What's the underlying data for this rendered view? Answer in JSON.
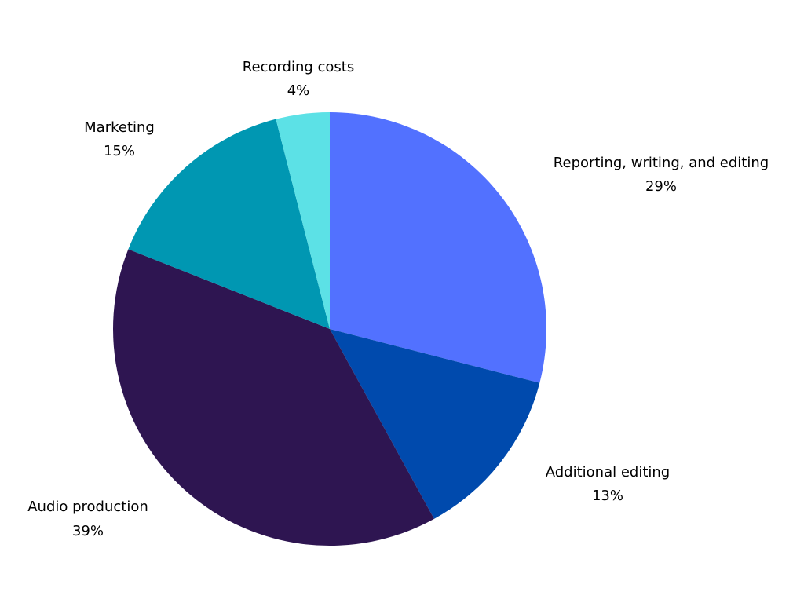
{
  "chart_data": {
    "type": "pie",
    "categories": [
      "Reporting, writing, and editing",
      "Additional editing",
      "Audio production",
      "Marketing",
      "Recording costs"
    ],
    "values": [
      29,
      13,
      39,
      15,
      4
    ],
    "value_labels": [
      "29%",
      "13%",
      "39%",
      "15%",
      "4%"
    ],
    "colors": [
      "#5271ff",
      "#004aad",
      "#2e1551",
      "#0097b2",
      "#5ce1e6"
    ]
  }
}
